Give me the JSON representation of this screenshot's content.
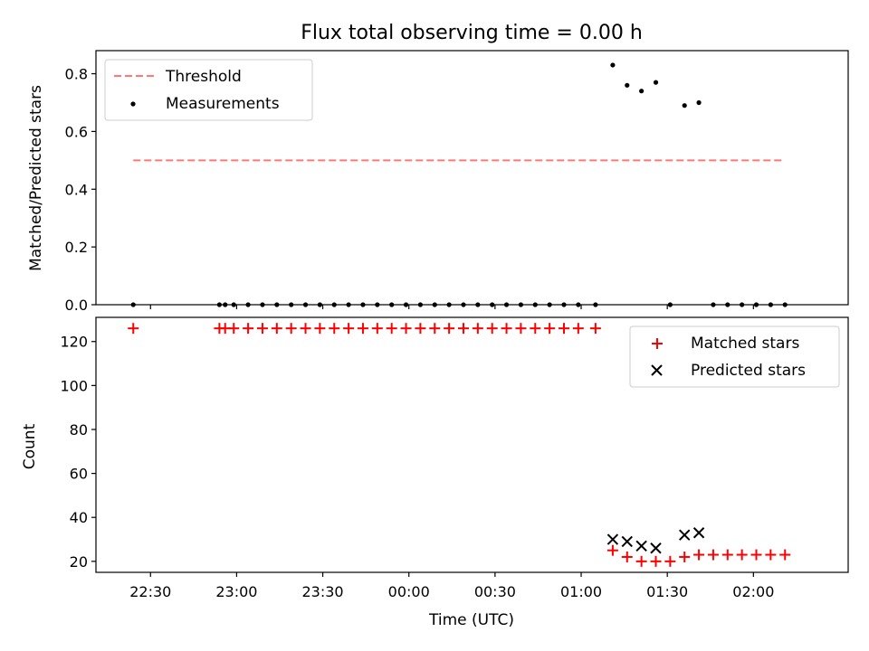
{
  "title": "Flux total observing time = 0.00 h",
  "chart_data": [
    {
      "type": "scatter",
      "ylabel": "Matched/Predicted stars",
      "ylim": [
        0,
        0.88
      ],
      "yticks": [
        0.0,
        0.2,
        0.4,
        0.6,
        0.8
      ],
      "ytick_labels": [
        "0.0",
        "0.2",
        "0.4",
        "0.6",
        "0.8"
      ],
      "xlim": [
        "22:11",
        "02:33"
      ],
      "legend_position": "top-left",
      "threshold": {
        "name": "Threshold",
        "value": 0.5,
        "x_range": [
          "22:24",
          "02:10"
        ],
        "color": "#ff7777",
        "style": "dashed"
      },
      "series": [
        {
          "name": "Measurements",
          "color": "#000000",
          "marker": "dot",
          "points": [
            [
              "22:24",
              0
            ],
            [
              "22:54",
              0
            ],
            [
              "22:56",
              0
            ],
            [
              "22:59",
              0
            ],
            [
              "23:04",
              0
            ],
            [
              "23:09",
              0
            ],
            [
              "23:14",
              0
            ],
            [
              "23:19",
              0
            ],
            [
              "23:24",
              0
            ],
            [
              "23:29",
              0
            ],
            [
              "23:34",
              0
            ],
            [
              "23:39",
              0
            ],
            [
              "23:44",
              0
            ],
            [
              "23:49",
              0
            ],
            [
              "23:54",
              0
            ],
            [
              "23:59",
              0
            ],
            [
              "00:04",
              0
            ],
            [
              "00:09",
              0
            ],
            [
              "00:14",
              0
            ],
            [
              "00:19",
              0
            ],
            [
              "00:24",
              0
            ],
            [
              "00:29",
              0
            ],
            [
              "00:34",
              0
            ],
            [
              "00:39",
              0
            ],
            [
              "00:44",
              0
            ],
            [
              "00:49",
              0
            ],
            [
              "00:54",
              0
            ],
            [
              "00:59",
              0
            ],
            [
              "01:05",
              0
            ],
            [
              "01:11",
              0.83
            ],
            [
              "01:16",
              0.76
            ],
            [
              "01:21",
              0.74
            ],
            [
              "01:26",
              0.77
            ],
            [
              "01:31",
              0
            ],
            [
              "01:36",
              0.69
            ],
            [
              "01:41",
              0.7
            ],
            [
              "01:46",
              0
            ],
            [
              "01:51",
              0
            ],
            [
              "01:56",
              0
            ],
            [
              "02:01",
              0
            ],
            [
              "02:06",
              0
            ],
            [
              "02:11",
              0
            ]
          ]
        }
      ]
    },
    {
      "type": "scatter",
      "xlabel": "Time (UTC)",
      "ylabel": "Count",
      "ylim": [
        15,
        131
      ],
      "yticks": [
        20,
        40,
        60,
        80,
        100,
        120
      ],
      "ytick_labels": [
        "20",
        "40",
        "60",
        "80",
        "100",
        "120"
      ],
      "xlim": [
        "22:11",
        "02:33"
      ],
      "xticks": [
        "22:30",
        "23:00",
        "23:30",
        "00:00",
        "00:30",
        "01:00",
        "01:30",
        "02:00"
      ],
      "legend_position": "top-right",
      "series": [
        {
          "name": "Matched stars",
          "color": "#ff0000",
          "marker": "plus",
          "points": [
            [
              "22:24",
              126
            ],
            [
              "22:54",
              126
            ],
            [
              "22:56",
              126
            ],
            [
              "22:59",
              126
            ],
            [
              "23:04",
              126
            ],
            [
              "23:09",
              126
            ],
            [
              "23:14",
              126
            ],
            [
              "23:19",
              126
            ],
            [
              "23:24",
              126
            ],
            [
              "23:29",
              126
            ],
            [
              "23:34",
              126
            ],
            [
              "23:39",
              126
            ],
            [
              "23:44",
              126
            ],
            [
              "23:49",
              126
            ],
            [
              "23:54",
              126
            ],
            [
              "23:59",
              126
            ],
            [
              "00:04",
              126
            ],
            [
              "00:09",
              126
            ],
            [
              "00:14",
              126
            ],
            [
              "00:19",
              126
            ],
            [
              "00:24",
              126
            ],
            [
              "00:29",
              126
            ],
            [
              "00:34",
              126
            ],
            [
              "00:39",
              126
            ],
            [
              "00:44",
              126
            ],
            [
              "00:49",
              126
            ],
            [
              "00:54",
              126
            ],
            [
              "00:59",
              126
            ],
            [
              "01:05",
              126
            ],
            [
              "01:11",
              25
            ],
            [
              "01:16",
              22
            ],
            [
              "01:21",
              20
            ],
            [
              "01:26",
              20
            ],
            [
              "01:31",
              20
            ],
            [
              "01:36",
              22
            ],
            [
              "01:41",
              23
            ],
            [
              "01:46",
              23
            ],
            [
              "01:51",
              23
            ],
            [
              "01:56",
              23
            ],
            [
              "02:01",
              23
            ],
            [
              "02:06",
              23
            ],
            [
              "02:11",
              23
            ]
          ]
        },
        {
          "name": "Predicted stars",
          "color": "#000000",
          "marker": "cross",
          "points": [
            [
              "01:11",
              30
            ],
            [
              "01:16",
              29
            ],
            [
              "01:21",
              27
            ],
            [
              "01:26",
              26
            ],
            [
              "01:36",
              32
            ],
            [
              "01:41",
              33
            ]
          ]
        }
      ]
    }
  ]
}
